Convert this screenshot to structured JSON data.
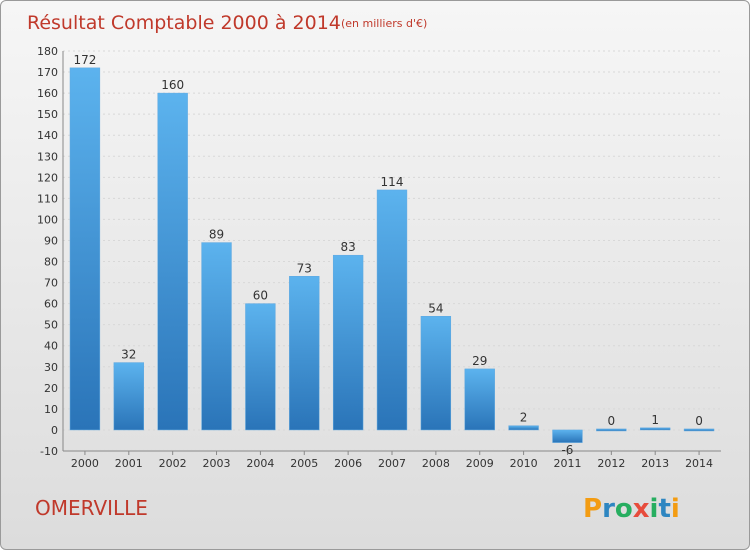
{
  "chart_data": {
    "type": "bar",
    "title": "Résultat Comptable 2000 à 2014",
    "subtitle": "(en milliers d'€)",
    "categories": [
      "2000",
      "2001",
      "2002",
      "2003",
      "2004",
      "2005",
      "2006",
      "2007",
      "2008",
      "2009",
      "2010",
      "2011",
      "2012",
      "2013",
      "2014"
    ],
    "values": [
      172,
      32,
      160,
      89,
      60,
      73,
      83,
      114,
      54,
      29,
      2,
      -6,
      0,
      1,
      0
    ],
    "ylim": [
      -10,
      180
    ],
    "yticks": [
      -10,
      0,
      10,
      20,
      30,
      40,
      50,
      60,
      70,
      80,
      90,
      100,
      110,
      120,
      130,
      140,
      150,
      160,
      170,
      180
    ],
    "xlabel": "",
    "ylabel": "",
    "grid": true,
    "bar_color": "#3f8fd6"
  },
  "footer": {
    "town": "OMERVILLE",
    "logo_letters": [
      "P",
      "r",
      "o",
      "x",
      "i",
      "t",
      "i"
    ],
    "logo_colors": [
      "#f39c12",
      "#2e86c1",
      "#27ae60",
      "#e74c3c",
      "#27ae60",
      "#2e86c1",
      "#f39c12"
    ]
  }
}
